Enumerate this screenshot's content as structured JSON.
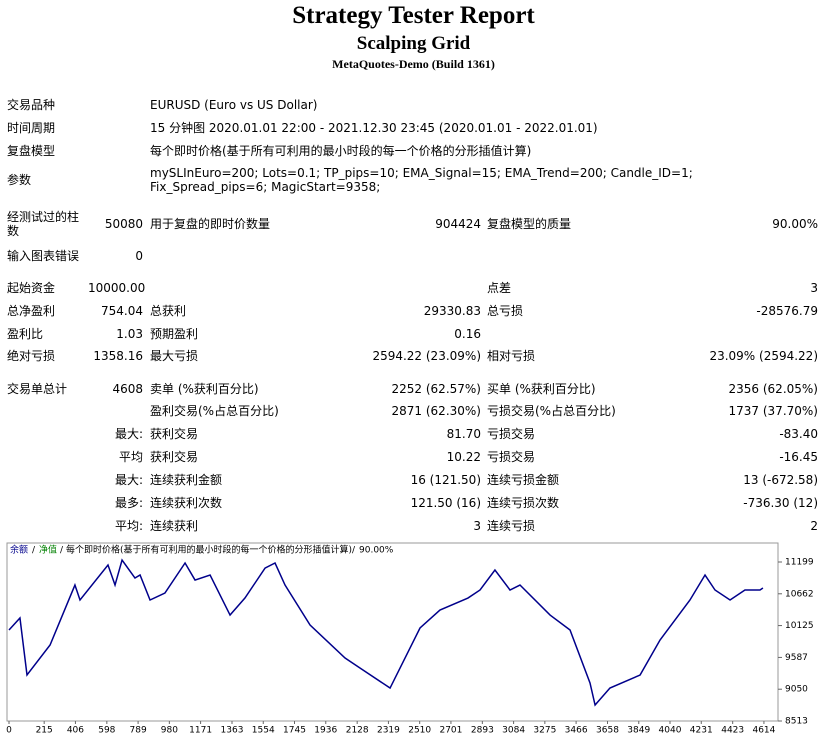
{
  "header": {
    "title": "Strategy Tester Report",
    "subtitle": "Scalping Grid",
    "build": "MetaQuotes-Demo (Build 1361)"
  },
  "settings": [
    {
      "label": "交易品种",
      "value": "EURUSD (Euro vs US Dollar)"
    },
    {
      "label": "时间周期",
      "value": "15 分钟图 2020.01.01 22:00 - 2021.12.30 23:45 (2020.01.01 - 2022.01.01)"
    },
    {
      "label": "复盘模型",
      "value": "每个即时价格(基于所有可利用的最小时段的每一个价格的分形插值计算)"
    },
    {
      "label": "参数",
      "value": "mySLInEuro=200; Lots=0.1; TP_pips=10; EMA_Signal=15; EMA_Trend=200; Candle_ID=1; Fix_Spread_pips=6; MagicStart=9358;"
    }
  ],
  "stats": [
    [
      "经测试过的柱数",
      "50080",
      "用于复盘的即时价数量",
      "904424",
      "复盘模型的质量",
      "90.00%"
    ],
    [
      "输入图表错误",
      "0",
      null,
      null,
      null,
      null
    ],
    [
      "起始资金",
      "10000.00",
      null,
      null,
      "点差",
      "3"
    ],
    [
      "总净盈利",
      "754.04",
      "总获利",
      "29330.83",
      "总亏损",
      "-28576.79"
    ],
    [
      "盈利比",
      "1.03",
      "预期盈利",
      "0.16",
      null,
      null
    ],
    [
      "绝对亏损",
      "1358.16",
      "最大亏损",
      "2594.22 (23.09%)",
      "相对亏损",
      "23.09% (2594.22)"
    ],
    [
      "交易单总计",
      "4608",
      "卖单 (%获利百分比)",
      "2252 (62.57%)",
      "买单 (%获利百分比)",
      "2356 (62.05%)"
    ],
    [
      null,
      null,
      "盈利交易(%占总百分比)",
      "2871 (62.30%)",
      "亏损交易(%占总百分比)",
      "1737 (37.70%)"
    ],
    [
      null,
      "最大:",
      "获利交易",
      "81.70",
      "亏损交易",
      "-83.40"
    ],
    [
      null,
      "平均",
      "获利交易",
      "10.22",
      "亏损交易",
      "-16.45"
    ],
    [
      null,
      "最大:",
      "连续获利金额",
      "16 (121.50)",
      "连续亏损金额",
      "13 (-672.58)"
    ],
    [
      null,
      "最多:",
      "连续获利次数",
      "121.50 (16)",
      "连续亏损次数",
      "-736.30 (12)"
    ],
    [
      null,
      "平均:",
      "连续获利",
      "3",
      "连续亏损",
      "2"
    ]
  ],
  "chart_data": {
    "type": "line",
    "legend": {
      "balance": "余额",
      "equity": "净值",
      "sep": "/",
      "model": "每个即时价格(基于所有可利用的最小时段的每一个价格的分形插值计算)",
      "quality": "90.00%"
    },
    "x": [
      0,
      67,
      110,
      251,
      403,
      434,
      605,
      648,
      691,
      770,
      801,
      862,
      953,
      1076,
      1137,
      1229,
      1351,
      1442,
      1565,
      1626,
      1687,
      1840,
      2054,
      2145,
      2329,
      2512,
      2634,
      2805,
      2879,
      2970,
      3062,
      3123,
      3307,
      3429,
      3551,
      3582,
      3673,
      3857,
      3979,
      4162,
      4254,
      4315,
      4407,
      4498,
      4590,
      4608
    ],
    "series": [
      {
        "name": "余额",
        "color": "#00008b",
        "values": [
          10050,
          10253,
          9290,
          9797,
          10810,
          10557,
          11148,
          10810,
          11232,
          10928,
          10979,
          10557,
          10675,
          11182,
          10894,
          10979,
          10303,
          10590,
          11097,
          11182,
          10810,
          10134,
          9577,
          9408,
          9070,
          10084,
          10388,
          10590,
          10726,
          11063,
          10726,
          10810,
          10303,
          10050,
          9155,
          8783,
          9070,
          9290,
          9881,
          10557,
          10979,
          10726,
          10557,
          10726,
          10726,
          10760
        ]
      }
    ],
    "xlim": [
      0,
      4700
    ],
    "ylim": [
      8513,
      11520
    ],
    "xticks": [
      0,
      215,
      406,
      598,
      789,
      980,
      1171,
      1363,
      1554,
      1745,
      1936,
      2128,
      2319,
      2510,
      2701,
      2893,
      3084,
      3275,
      3466,
      3658,
      3849,
      4040,
      4231,
      4423,
      4614
    ],
    "yticks": [
      8513,
      9050,
      9587,
      10125,
      10662,
      11199
    ],
    "equity_color": "#008000"
  }
}
